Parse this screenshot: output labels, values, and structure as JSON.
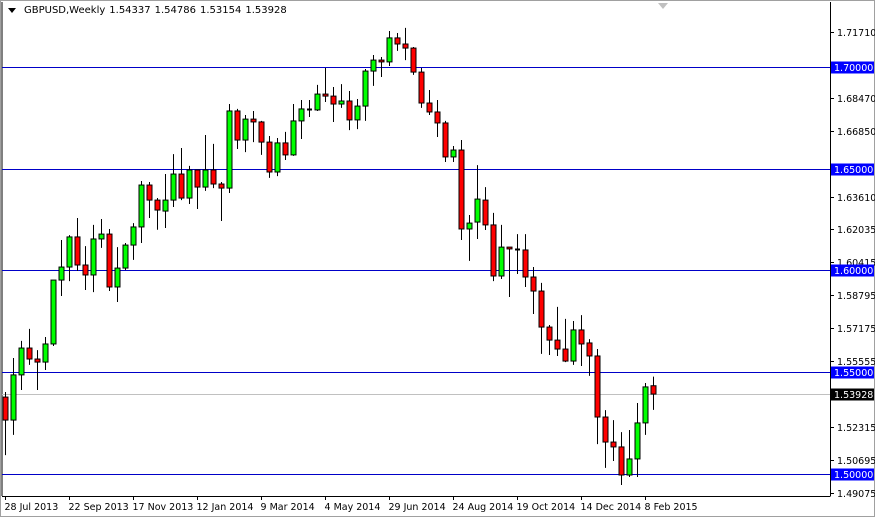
{
  "header": {
    "symbol": "GBPUSD,Weekly",
    "open": "1.54337",
    "high": "1.54786",
    "low": "1.53154",
    "close": "1.53928",
    "menu_icon": "triangle-down-icon"
  },
  "colors": {
    "bull": "#00ff00",
    "bear": "#ff0000",
    "outline": "#000000",
    "level_line": "#0000c8",
    "level_label_bg": "#0000ff",
    "current_line": "#c0c0c0",
    "current_label_bg": "#000000"
  },
  "chart_data": {
    "type": "candlestick",
    "title": "GBPUSD,Weekly",
    "ylim": [
      1.4895,
      1.7245
    ],
    "grid": false,
    "y_tick_labels": [
      "1.71710",
      "1.68470",
      "1.66850",
      "1.63610",
      "1.62035",
      "1.60415",
      "1.58795",
      "1.57175",
      "1.55555",
      "1.52315",
      "1.50695",
      "1.49075"
    ],
    "x_tick_labels": [
      {
        "date": "2013-07-28",
        "label": "28 Jul 2013"
      },
      {
        "date": "2013-09-22",
        "label": "22 Sep 2013"
      },
      {
        "date": "2013-11-17",
        "label": "17 Nov 2013"
      },
      {
        "date": "2014-01-12",
        "label": "12 Jan 2014"
      },
      {
        "date": "2014-03-09",
        "label": "9 Mar 2014"
      },
      {
        "date": "2014-05-04",
        "label": "4 May 2014"
      },
      {
        "date": "2014-06-29",
        "label": "29 Jun 2014"
      },
      {
        "date": "2014-08-24",
        "label": "24 Aug 2014"
      },
      {
        "date": "2014-10-19",
        "label": "19 Oct 2014"
      },
      {
        "date": "2014-12-14",
        "label": "14 Dec 2014"
      },
      {
        "date": "2015-02-08",
        "label": "8 Feb 2015"
      }
    ],
    "horizontal_levels": [
      {
        "value": 1.7,
        "label": "1.70000"
      },
      {
        "value": 1.65,
        "label": "1.65000"
      },
      {
        "value": 1.6,
        "label": "1.60000"
      },
      {
        "value": 1.55,
        "label": "1.55000"
      },
      {
        "value": 1.5,
        "label": "1.50000"
      }
    ],
    "current_price": {
      "value": 1.53928,
      "label": "1.53928"
    },
    "candle_fields": [
      "date",
      "open",
      "high",
      "low",
      "close"
    ],
    "candles": [
      [
        "2013-07-28",
        1.5378,
        1.5403,
        1.5093,
        1.5265
      ],
      [
        "2013-08-04",
        1.5265,
        1.557,
        1.5192,
        1.5487
      ],
      [
        "2013-08-11",
        1.5487,
        1.5654,
        1.5413,
        1.5619
      ],
      [
        "2013-08-18",
        1.5619,
        1.5713,
        1.5536,
        1.5565
      ],
      [
        "2013-08-25",
        1.5565,
        1.5609,
        1.5413,
        1.555
      ],
      [
        "2013-09-01",
        1.555,
        1.5673,
        1.5511,
        1.5639
      ],
      [
        "2013-09-08",
        1.5639,
        1.5953,
        1.5629,
        1.5953
      ],
      [
        "2013-09-15",
        1.5953,
        1.615,
        1.5875,
        1.6017
      ],
      [
        "2013-09-22",
        1.6017,
        1.6174,
        1.5948,
        1.6165
      ],
      [
        "2013-09-29",
        1.6165,
        1.6258,
        1.5998,
        1.6027
      ],
      [
        "2013-10-06",
        1.6027,
        1.612,
        1.5904,
        1.5978
      ],
      [
        "2013-10-13",
        1.5978,
        1.6224,
        1.5894,
        1.6155
      ],
      [
        "2013-10-20",
        1.6155,
        1.6253,
        1.6111,
        1.6179
      ],
      [
        "2013-10-27",
        1.6179,
        1.6204,
        1.5899,
        1.5919
      ],
      [
        "2013-11-03",
        1.5919,
        1.6115,
        1.5845,
        1.6012
      ],
      [
        "2013-11-10",
        1.6012,
        1.6135,
        1.6002,
        1.6125
      ],
      [
        "2013-11-17",
        1.6125,
        1.6233,
        1.6052,
        1.6214
      ],
      [
        "2013-11-24",
        1.6214,
        1.644,
        1.6135,
        1.642
      ],
      [
        "2013-12-01",
        1.642,
        1.6435,
        1.6258,
        1.6346
      ],
      [
        "2013-12-08",
        1.6346,
        1.6356,
        1.62,
        1.6297
      ],
      [
        "2013-12-15",
        1.6292,
        1.6474,
        1.6209,
        1.6346
      ],
      [
        "2013-12-22",
        1.6346,
        1.6572,
        1.6312,
        1.6474
      ],
      [
        "2013-12-29",
        1.6474,
        1.6602,
        1.6346,
        1.6356
      ],
      [
        "2014-01-05",
        1.6356,
        1.6514,
        1.6327,
        1.6494
      ],
      [
        "2014-01-12",
        1.6494,
        1.6494,
        1.6302,
        1.641
      ],
      [
        "2014-01-19",
        1.641,
        1.6666,
        1.6391,
        1.6494
      ],
      [
        "2014-01-26",
        1.6494,
        1.6622,
        1.6405,
        1.6425
      ],
      [
        "2014-02-02",
        1.6425,
        1.6435,
        1.6243,
        1.6405
      ],
      [
        "2014-02-09",
        1.6405,
        1.6818,
        1.6381,
        1.6784
      ],
      [
        "2014-02-16",
        1.6784,
        1.6794,
        1.6597,
        1.6641
      ],
      [
        "2014-02-23",
        1.6641,
        1.6764,
        1.6582,
        1.6744
      ],
      [
        "2014-03-02",
        1.6744,
        1.6784,
        1.6631,
        1.673
      ],
      [
        "2014-03-09",
        1.673,
        1.6735,
        1.6568,
        1.6631
      ],
      [
        "2014-03-16",
        1.6631,
        1.6661,
        1.6455,
        1.6484
      ],
      [
        "2014-03-23",
        1.6484,
        1.6651,
        1.6464,
        1.6627
      ],
      [
        "2014-03-30",
        1.6627,
        1.6681,
        1.6543,
        1.6568
      ],
      [
        "2014-04-06",
        1.6568,
        1.6818,
        1.6563,
        1.6735
      ],
      [
        "2014-04-13",
        1.6735,
        1.6838,
        1.6646,
        1.6794
      ],
      [
        "2014-04-20",
        1.6794,
        1.6838,
        1.6754,
        1.6789
      ],
      [
        "2014-04-27",
        1.6789,
        1.6912,
        1.6784,
        1.6867
      ],
      [
        "2014-05-04",
        1.6867,
        1.6995,
        1.6828,
        1.6857
      ],
      [
        "2014-05-11",
        1.6857,
        1.6902,
        1.673,
        1.6818
      ],
      [
        "2014-05-18",
        1.6818,
        1.6916,
        1.6799,
        1.6833
      ],
      [
        "2014-05-25",
        1.6833,
        1.6882,
        1.669,
        1.674
      ],
      [
        "2014-06-01",
        1.674,
        1.6843,
        1.6695,
        1.6808
      ],
      [
        "2014-06-08",
        1.6808,
        1.699,
        1.6735,
        1.698
      ],
      [
        "2014-06-15",
        1.698,
        1.7059,
        1.6907,
        1.7034
      ],
      [
        "2014-06-22",
        1.7034,
        1.7049,
        1.6951,
        1.7025
      ],
      [
        "2014-06-29",
        1.7025,
        1.7177,
        1.7005,
        1.7143
      ],
      [
        "2014-07-06",
        1.7143,
        1.7167,
        1.7079,
        1.7113
      ],
      [
        "2014-07-13",
        1.7113,
        1.7192,
        1.7034,
        1.7093
      ],
      [
        "2014-07-20",
        1.7093,
        1.7098,
        1.6961,
        1.6975
      ],
      [
        "2014-07-27",
        1.6975,
        1.6995,
        1.6799,
        1.6823
      ],
      [
        "2014-08-03",
        1.6823,
        1.6887,
        1.6764,
        1.6779
      ],
      [
        "2014-08-10",
        1.6779,
        1.6838,
        1.6656,
        1.6725
      ],
      [
        "2014-08-17",
        1.6725,
        1.6735,
        1.6533,
        1.6558
      ],
      [
        "2014-08-24",
        1.6558,
        1.6612,
        1.6533,
        1.6592
      ],
      [
        "2014-08-31",
        1.6592,
        1.6641,
        1.615,
        1.6204
      ],
      [
        "2014-09-07",
        1.6204,
        1.6273,
        1.6047,
        1.6233
      ],
      [
        "2014-09-14",
        1.6238,
        1.6518,
        1.6155,
        1.6351
      ],
      [
        "2014-09-21",
        1.6346,
        1.641,
        1.6199,
        1.6224
      ],
      [
        "2014-09-28",
        1.6224,
        1.6283,
        1.5948,
        1.5973
      ],
      [
        "2014-10-05",
        1.5973,
        1.6224,
        1.5958,
        1.6115
      ],
      [
        "2014-10-12",
        1.6115,
        1.6115,
        1.587,
        1.6106
      ],
      [
        "2014-10-19",
        1.6106,
        1.6179,
        1.5983,
        1.6101
      ],
      [
        "2014-10-26",
        1.6101,
        1.6179,
        1.5919,
        1.5968
      ],
      [
        "2014-11-02",
        1.5968,
        1.6017,
        1.5786,
        1.5899
      ],
      [
        "2014-11-09",
        1.5899,
        1.5939,
        1.559,
        1.5722
      ],
      [
        "2014-11-16",
        1.5722,
        1.5732,
        1.5585,
        1.5658
      ],
      [
        "2014-11-23",
        1.5658,
        1.5821,
        1.558,
        1.5614
      ],
      [
        "2014-11-30",
        1.5614,
        1.5762,
        1.555,
        1.5555
      ],
      [
        "2014-12-07",
        1.5555,
        1.5752,
        1.5536,
        1.5708
      ],
      [
        "2014-12-14",
        1.5708,
        1.5781,
        1.5531,
        1.5639
      ],
      [
        "2014-12-21",
        1.5644,
        1.5663,
        1.5482,
        1.558
      ],
      [
        "2014-12-28",
        1.558,
        1.5614,
        1.5147,
        1.528
      ],
      [
        "2015-01-04",
        1.528,
        1.5314,
        1.503,
        1.5157
      ],
      [
        "2015-01-11",
        1.5157,
        1.5265,
        1.5064,
        1.5133
      ],
      [
        "2015-01-18",
        1.5133,
        1.5206,
        1.4946,
        1.4995
      ],
      [
        "2015-01-25",
        1.4995,
        1.5216,
        1.4985,
        1.5074
      ],
      [
        "2015-02-01",
        1.5074,
        1.5349,
        1.4985,
        1.5251
      ],
      [
        "2015-02-08",
        1.5251,
        1.5447,
        1.5192,
        1.5428
      ],
      [
        "2015-02-15",
        1.54337,
        1.54786,
        1.53154,
        1.53928
      ]
    ]
  }
}
